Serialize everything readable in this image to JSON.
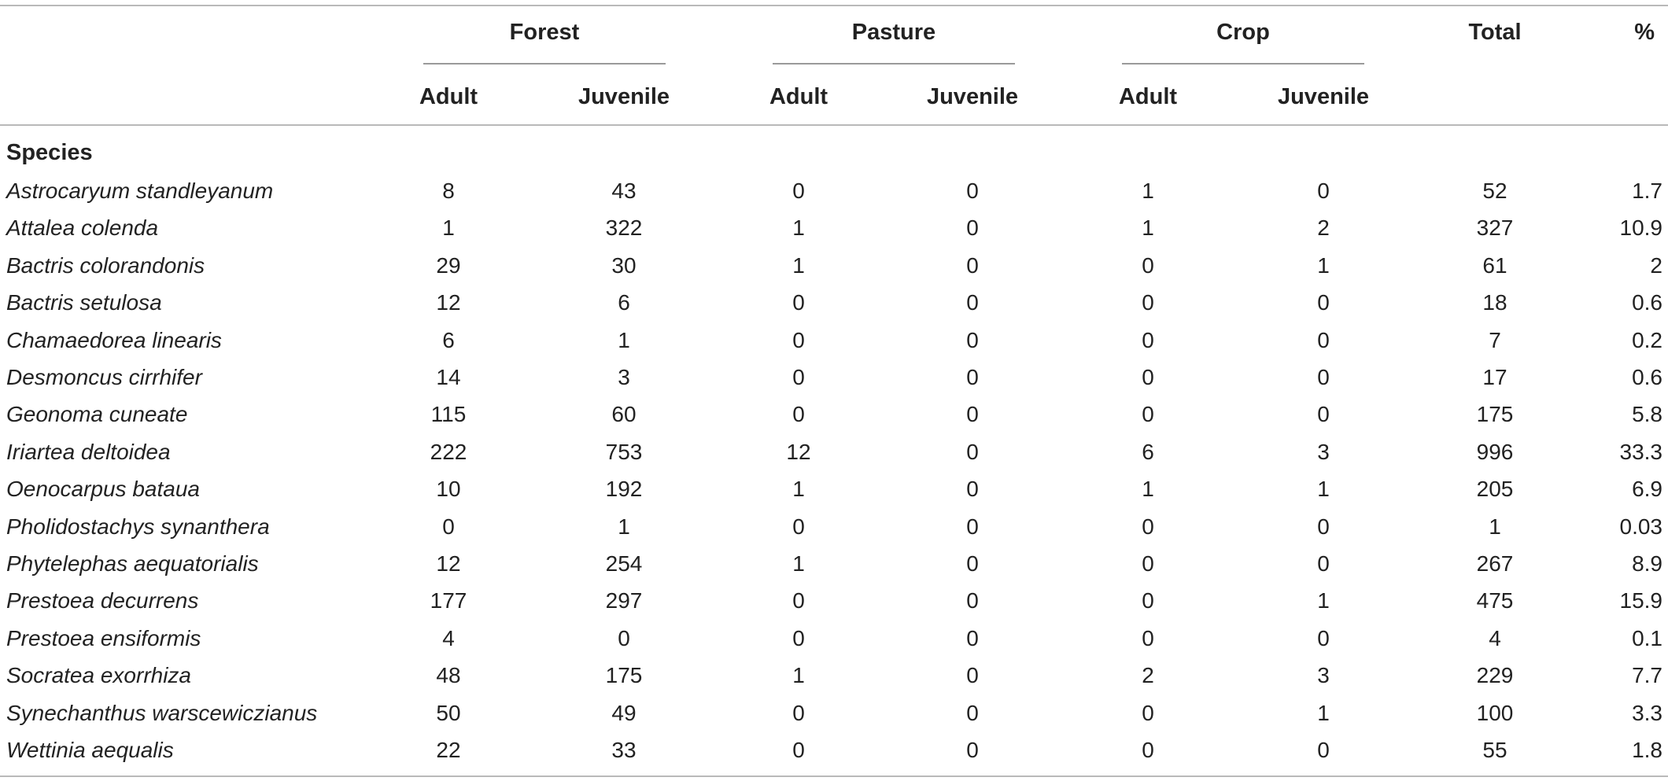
{
  "header": {
    "groups": [
      "Forest",
      "Pasture",
      "Crop"
    ],
    "subcolumns": [
      "Adult",
      "Juvenile",
      "Adult",
      "Juvenile",
      "Adult",
      "Juvenile"
    ],
    "total_label": "Total",
    "percent_label": "%",
    "section_label": "Species"
  },
  "rows": [
    {
      "species": "Astrocaryum standleyanum",
      "values": [
        "8",
        "43",
        "0",
        "0",
        "1",
        "0"
      ],
      "total": "52",
      "percent": "1.7"
    },
    {
      "species": "Attalea colenda",
      "values": [
        "1",
        "322",
        "1",
        "0",
        "1",
        "2"
      ],
      "total": "327",
      "percent": "10.9"
    },
    {
      "species": "Bactris colorandonis",
      "values": [
        "29",
        "30",
        "1",
        "0",
        "0",
        "1"
      ],
      "total": "61",
      "percent": "2"
    },
    {
      "species": "Bactris setulosa",
      "values": [
        "12",
        "6",
        "0",
        "0",
        "0",
        "0"
      ],
      "total": "18",
      "percent": "0.6"
    },
    {
      "species": "Chamaedorea linearis",
      "values": [
        "6",
        "1",
        "0",
        "0",
        "0",
        "0"
      ],
      "total": "7",
      "percent": "0.2"
    },
    {
      "species": "Desmoncus cirrhifer",
      "values": [
        "14",
        "3",
        "0",
        "0",
        "0",
        "0"
      ],
      "total": "17",
      "percent": "0.6"
    },
    {
      "species": "Geonoma cuneate",
      "values": [
        "115",
        "60",
        "0",
        "0",
        "0",
        "0"
      ],
      "total": "175",
      "percent": "5.8"
    },
    {
      "species": "Iriartea deltoidea",
      "values": [
        "222",
        "753",
        "12",
        "0",
        "6",
        "3"
      ],
      "total": "996",
      "percent": "33.3"
    },
    {
      "species": "Oenocarpus bataua",
      "values": [
        "10",
        "192",
        "1",
        "0",
        "1",
        "1"
      ],
      "total": "205",
      "percent": "6.9"
    },
    {
      "species": "Pholidostachys synanthera",
      "values": [
        "0",
        "1",
        "0",
        "0",
        "0",
        "0"
      ],
      "total": "1",
      "percent": "0.03"
    },
    {
      "species": "Phytelephas aequatorialis",
      "values": [
        "12",
        "254",
        "1",
        "0",
        "0",
        "0"
      ],
      "total": "267",
      "percent": "8.9"
    },
    {
      "species": "Prestoea decurrens",
      "values": [
        "177",
        "297",
        "0",
        "0",
        "0",
        "1"
      ],
      "total": "475",
      "percent": "15.9"
    },
    {
      "species": "Prestoea ensiformis",
      "values": [
        "4",
        "0",
        "0",
        "0",
        "0",
        "0"
      ],
      "total": "4",
      "percent": "0.1"
    },
    {
      "species": "Socratea exorrhiza",
      "values": [
        "48",
        "175",
        "1",
        "0",
        "2",
        "3"
      ],
      "total": "229",
      "percent": "7.7"
    },
    {
      "species": "Synechanthus warscewiczianus",
      "values": [
        "50",
        "49",
        "0",
        "0",
        "0",
        "1"
      ],
      "total": "100",
      "percent": "3.3"
    },
    {
      "species": "Wettinia aequalis",
      "values": [
        "22",
        "33",
        "0",
        "0",
        "0",
        "0"
      ],
      "total": "55",
      "percent": "1.8"
    }
  ]
}
